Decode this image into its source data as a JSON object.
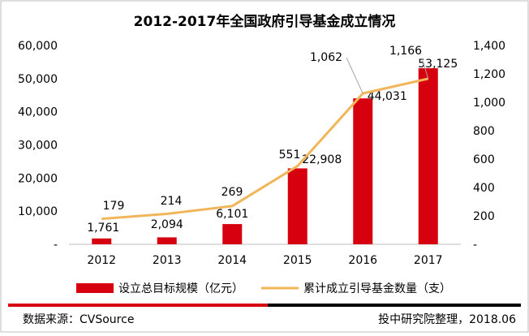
{
  "chart_data": {
    "type": "bar+line",
    "title": "2012-2017年全国政府引导基金成立情况",
    "categories": [
      "2012",
      "2013",
      "2014",
      "2015",
      "2016",
      "2017"
    ],
    "series": [
      {
        "name": "设立总目标规模（亿元）",
        "type": "bar",
        "axis": "left",
        "values": [
          1761,
          2094,
          6101,
          22908,
          44031,
          53125
        ],
        "labels": [
          "1,761",
          "2,094",
          "6,101",
          "22,908",
          "44,031",
          "53,125"
        ],
        "color": "#d7000f"
      },
      {
        "name": "累计成立引导基金数量（支）",
        "type": "line",
        "axis": "right",
        "values": [
          179,
          214,
          269,
          551,
          1062,
          1166
        ],
        "labels": [
          "179",
          "214",
          "269",
          "551",
          "1,062",
          "1,166"
        ],
        "color": "#f2b65a"
      }
    ],
    "y_left": {
      "min": 0,
      "max": 60000,
      "ticks": [
        0,
        10000,
        20000,
        30000,
        40000,
        50000,
        60000
      ],
      "tick_labels": [
        "-",
        "10,000",
        "20,000",
        "30,000",
        "40,000",
        "50,000",
        "60,000"
      ]
    },
    "y_right": {
      "min": 0,
      "max": 1400,
      "ticks": [
        0,
        200,
        400,
        600,
        800,
        1000,
        1200,
        1400
      ],
      "tick_labels": [
        "-",
        "200",
        "400",
        "600",
        "800",
        "1,000",
        "1,200",
        "1,400"
      ]
    },
    "grid": false,
    "legend_position": "bottom"
  },
  "footer": {
    "source": "数据来源：CVSource",
    "credit": "投中研究院整理，2018.06"
  },
  "colors": {
    "bar": "#d7000f",
    "line": "#f2b65a",
    "footer_red": "#d7000f",
    "footer_black": "#000000"
  }
}
